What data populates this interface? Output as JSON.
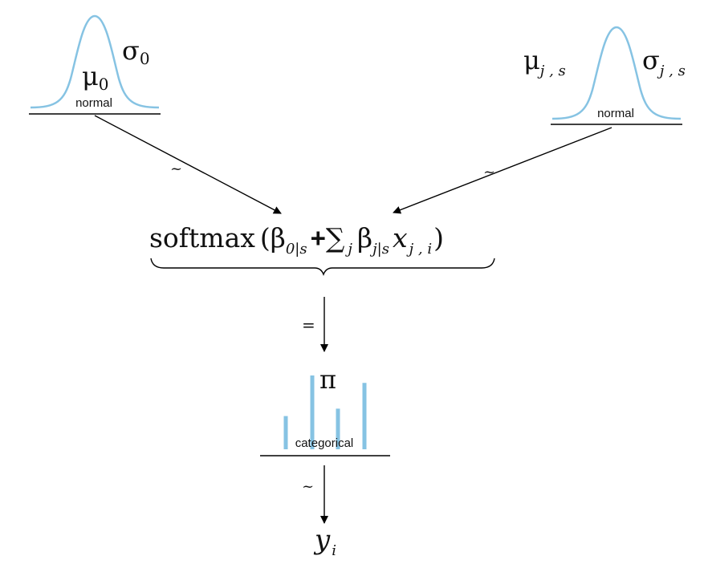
{
  "left_prior": {
    "distribution": "normal",
    "mean_symbol": "μ",
    "mean_subscript": "0",
    "sd_symbol": "σ",
    "sd_subscript": "0"
  },
  "right_prior": {
    "distribution": "normal",
    "mean_symbol": "μ",
    "mean_subscript": "j , s",
    "sd_symbol": "σ",
    "sd_subscript": "j , s"
  },
  "arrow_labels": {
    "left": "~",
    "right": "~",
    "middle": "=",
    "bottom": "~"
  },
  "formula": {
    "func": "softmax",
    "open_paren": "(",
    "beta": "β",
    "beta0_sub": "0|s",
    "plus": "+",
    "sum": "∑",
    "sum_sub": "j",
    "betaj_sub": "j|s",
    "x": "x",
    "x_sub": "j , i",
    "close_paren": ")"
  },
  "likelihood": {
    "distribution": "categorical",
    "param": "π",
    "bar_heights": [
      0.45,
      1.0,
      0.55,
      0.9
    ]
  },
  "outcome": {
    "symbol": "y",
    "subscript": "i"
  },
  "colors": {
    "curve": "#86c3e3",
    "lines": "#000000"
  }
}
